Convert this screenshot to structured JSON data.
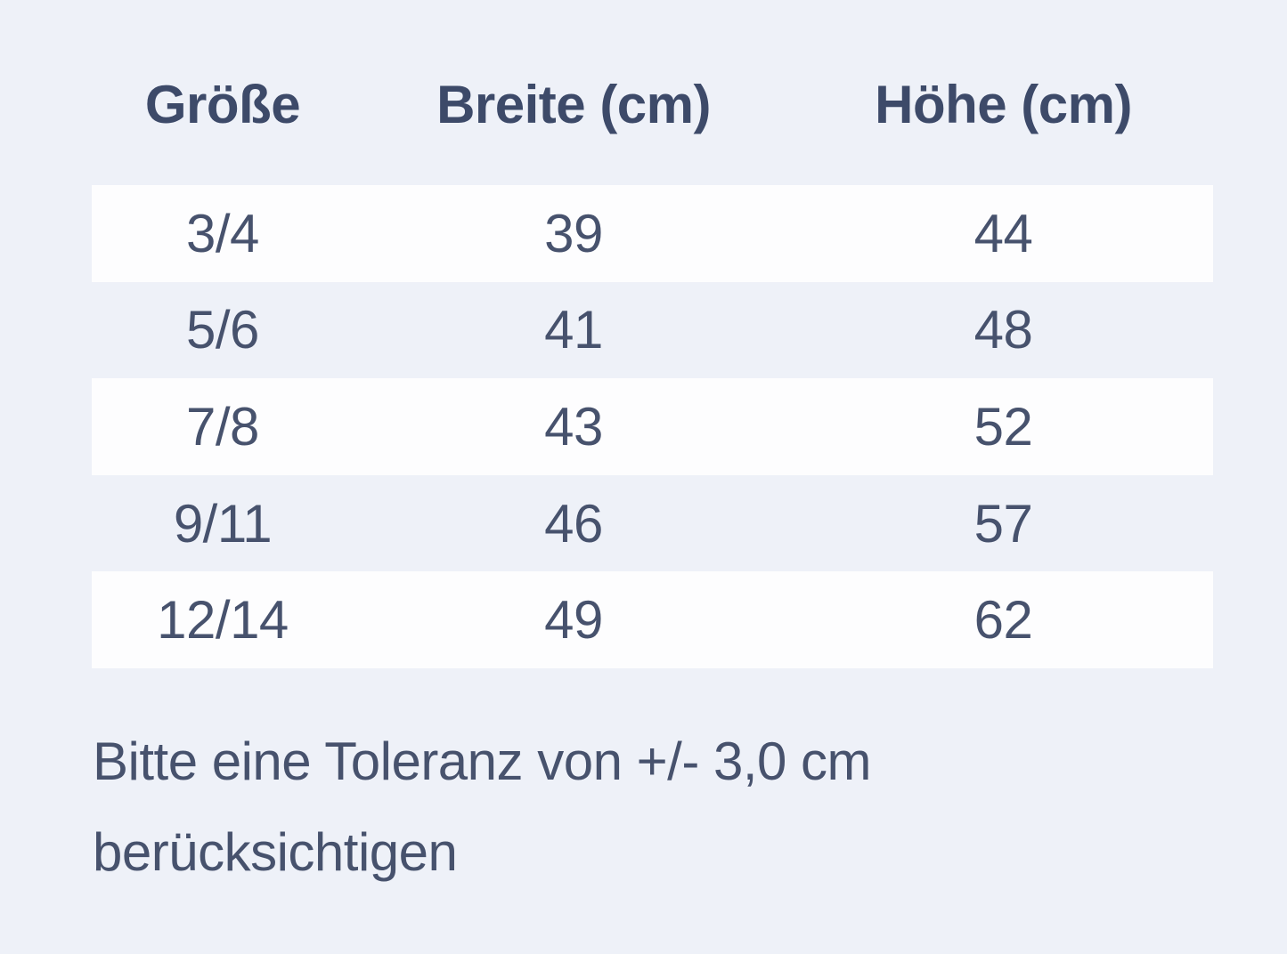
{
  "size_chart": {
    "columns": [
      "Größe",
      "Breite (cm)",
      "Höhe (cm)"
    ],
    "rows": [
      {
        "size": "3/4",
        "breite_cm": "39",
        "hoehe_cm": "44"
      },
      {
        "size": "5/6",
        "breite_cm": "41",
        "hoehe_cm": "48"
      },
      {
        "size": "7/8",
        "breite_cm": "43",
        "hoehe_cm": "52"
      },
      {
        "size": "9/11",
        "breite_cm": "46",
        "hoehe_cm": "57"
      },
      {
        "size": "12/14",
        "breite_cm": "49",
        "hoehe_cm": "62"
      }
    ],
    "note": "Bitte eine Toleranz von +/- 3,0 cm berücksichtigen"
  },
  "colors": {
    "page_background": "#eef1f8",
    "row_stripe": "#fdfdfe",
    "header_text": "#3d4a69",
    "body_text": "#47526d"
  }
}
